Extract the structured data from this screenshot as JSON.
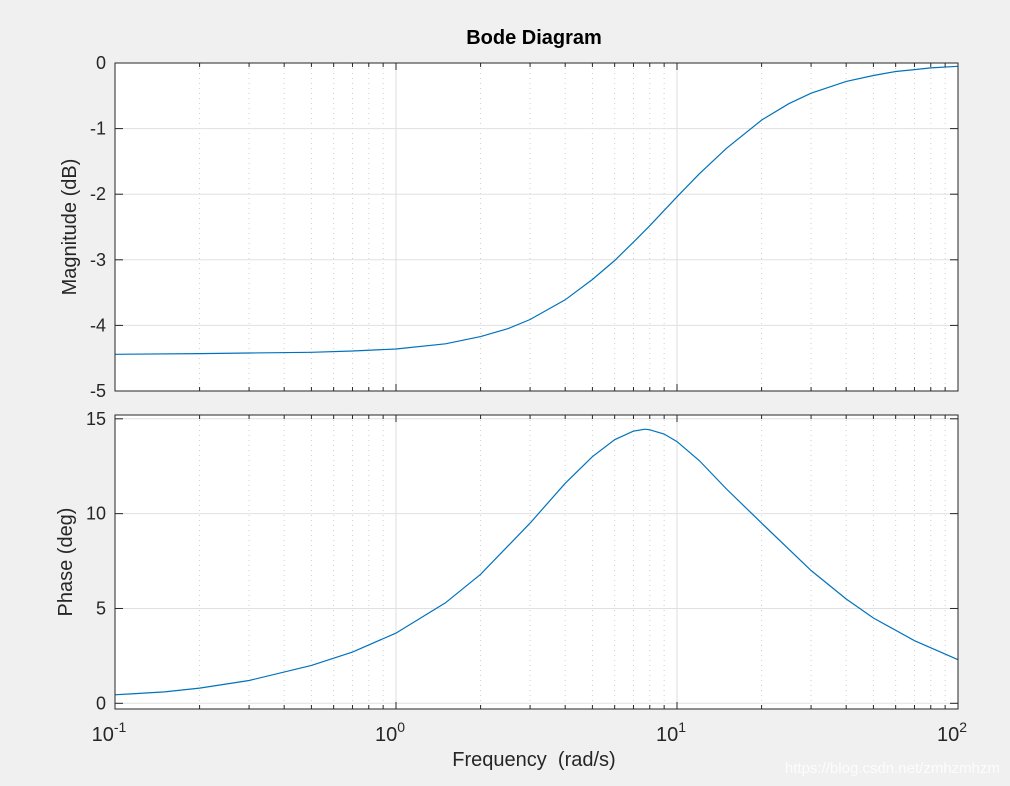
{
  "figure": {
    "title": "Bode Diagram",
    "xlabel": "Frequency  (rad/s)",
    "watermark": "https://blog.csdn.net/zmhzmhzm",
    "colors": {
      "background": "#f0f0f0",
      "axes_bg": "#ffffff",
      "line": "#0072bd",
      "grid": "#e0e0e0",
      "text": "#262626"
    }
  },
  "chart_data": [
    {
      "type": "line",
      "title": "Bode Diagram",
      "ylabel": "Magnitude (dB)",
      "xlabel": "",
      "xscale": "log",
      "xlim": [
        0.1,
        100
      ],
      "ylim": [
        -5,
        0
      ],
      "xticks": [
        0.1,
        1,
        10,
        100
      ],
      "xtick_labels": [
        {
          "base": "10",
          "exp": "-1"
        },
        {
          "base": "10",
          "exp": "0"
        },
        {
          "base": "10",
          "exp": "1"
        },
        {
          "base": "10",
          "exp": "2"
        }
      ],
      "yticks": [
        0,
        -1,
        -2,
        -3,
        -4,
        -5
      ],
      "ytick_labels": [
        "0",
        "-1",
        "-2",
        "-3",
        "-4",
        "-5"
      ],
      "grid": true,
      "series": [
        {
          "x": [
            0.1,
            0.2,
            0.3,
            0.5,
            0.7,
            1,
            1.5,
            2,
            2.5,
            3,
            4,
            5,
            6,
            7,
            8,
            10,
            12,
            15,
            20,
            25,
            30,
            40,
            50,
            60,
            70,
            80,
            100
          ],
          "y": [
            -4.44,
            -4.43,
            -4.42,
            -4.41,
            -4.39,
            -4.36,
            -4.28,
            -4.17,
            -4.05,
            -3.91,
            -3.61,
            -3.3,
            -3.01,
            -2.73,
            -2.48,
            -2.04,
            -1.69,
            -1.3,
            -0.87,
            -0.62,
            -0.46,
            -0.28,
            -0.19,
            -0.13,
            -0.1,
            -0.075,
            -0.05
          ]
        }
      ]
    },
    {
      "type": "line",
      "ylabel": "Phase (deg)",
      "xlabel": "Frequency  (rad/s)",
      "xscale": "log",
      "xlim": [
        0.1,
        100
      ],
      "ylim": [
        -0.3,
        15.2
      ],
      "xticks": [
        0.1,
        1,
        10,
        100
      ],
      "xtick_labels": [
        {
          "base": "10",
          "exp": "-1"
        },
        {
          "base": "10",
          "exp": "0"
        },
        {
          "base": "10",
          "exp": "1"
        },
        {
          "base": "10",
          "exp": "2"
        }
      ],
      "yticks": [
        15,
        10,
        5,
        0
      ],
      "ytick_labels": [
        "15",
        "10",
        "5",
        "0"
      ],
      "grid": true,
      "series": [
        {
          "x": [
            0.1,
            0.15,
            0.2,
            0.3,
            0.5,
            0.7,
            1,
            1.5,
            2,
            3,
            4,
            5,
            6,
            7,
            7.7,
            8,
            9,
            10,
            12,
            15,
            20,
            30,
            40,
            50,
            70,
            100
          ],
          "y": [
            0.45,
            0.6,
            0.8,
            1.2,
            2.0,
            2.7,
            3.7,
            5.3,
            6.8,
            9.5,
            11.6,
            13.0,
            13.9,
            14.35,
            14.45,
            14.42,
            14.2,
            13.8,
            12.8,
            11.3,
            9.5,
            7.0,
            5.5,
            4.5,
            3.3,
            2.3
          ]
        }
      ]
    }
  ]
}
